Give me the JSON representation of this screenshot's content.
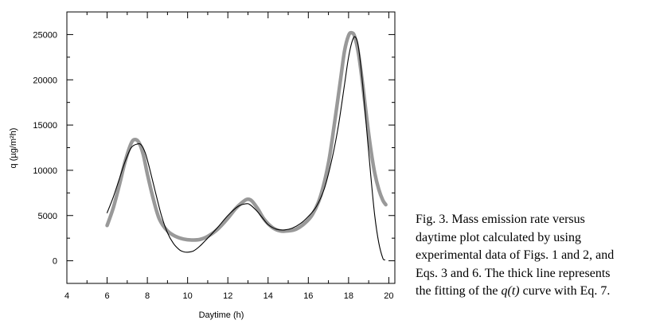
{
  "chart_data": {
    "type": "line",
    "title": "",
    "xlabel": "Daytime (h)",
    "ylabel": "q (µg/m²h)",
    "xlim": [
      4,
      20.3
    ],
    "ylim": [
      -2500,
      27500
    ],
    "x_ticks": [
      4,
      6,
      8,
      10,
      12,
      14,
      16,
      18,
      20
    ],
    "y_ticks": [
      0,
      5000,
      10000,
      15000,
      20000,
      25000
    ],
    "grid": false,
    "legend": "none",
    "series": [
      {
        "style": "thick",
        "color": "#999999",
        "x": [
          6.0,
          6.3,
          6.6,
          6.9,
          7.2,
          7.4,
          7.6,
          7.8,
          8.0,
          8.3,
          8.6,
          9.0,
          9.4,
          9.8,
          10.2,
          10.6,
          11.0,
          11.5,
          12.0,
          12.4,
          12.8,
          13.0,
          13.2,
          13.5,
          13.8,
          14.2,
          14.6,
          15.0,
          15.4,
          15.8,
          16.2,
          16.6,
          17.0,
          17.3,
          17.6,
          17.8,
          18.0,
          18.15,
          18.3,
          18.5,
          18.7,
          18.9,
          19.1,
          19.3,
          19.5,
          19.7,
          19.85
        ],
        "y": [
          3900,
          5800,
          8300,
          11000,
          13000,
          13400,
          13000,
          11700,
          9600,
          6800,
          4600,
          3300,
          2700,
          2400,
          2300,
          2350,
          2700,
          3500,
          4700,
          5800,
          6600,
          6800,
          6600,
          5700,
          4600,
          3700,
          3300,
          3300,
          3500,
          4100,
          5100,
          7100,
          10800,
          15200,
          20000,
          23200,
          24900,
          25200,
          24800,
          22800,
          19500,
          15800,
          12400,
          9700,
          7900,
          6700,
          6200
        ]
      },
      {
        "style": "thin",
        "color": "#000000",
        "x": [
          6.0,
          6.3,
          6.6,
          6.9,
          7.2,
          7.5,
          7.7,
          7.9,
          8.1,
          8.4,
          8.7,
          9.0,
          9.3,
          9.6,
          9.8,
          10.0,
          10.3,
          10.6,
          11.0,
          11.5,
          12.0,
          12.5,
          12.9,
          13.1,
          13.4,
          13.7,
          14.0,
          14.4,
          14.8,
          15.2,
          15.6,
          16.0,
          16.4,
          16.8,
          17.2,
          17.5,
          17.8,
          18.0,
          18.2,
          18.35,
          18.5,
          18.7,
          18.9,
          19.1,
          19.3,
          19.5,
          19.7,
          19.8
        ],
        "y": [
          5300,
          7000,
          9000,
          11000,
          12500,
          12900,
          12800,
          11900,
          10300,
          7600,
          5000,
          3100,
          1900,
          1200,
          1000,
          950,
          1100,
          1600,
          2500,
          3700,
          5000,
          6000,
          6300,
          6200,
          5600,
          4800,
          4000,
          3500,
          3400,
          3600,
          4100,
          4900,
          6000,
          8000,
          11500,
          15000,
          19500,
          22500,
          24400,
          24700,
          23500,
          19500,
          14500,
          9500,
          5000,
          2000,
          300,
          100
        ]
      }
    ]
  },
  "caption": {
    "line1": "Fig. 3. Mass emission rate versus",
    "line2": "daytime plot calculated by using",
    "line3": "experimental data of Figs. 1 and 2, and",
    "line4": "Eqs. 3 and 6. The thick line represents",
    "line5_before": "the fitting of the ",
    "line5_italic": "q(t)",
    "line5_after": " curve with Eq. 7."
  }
}
